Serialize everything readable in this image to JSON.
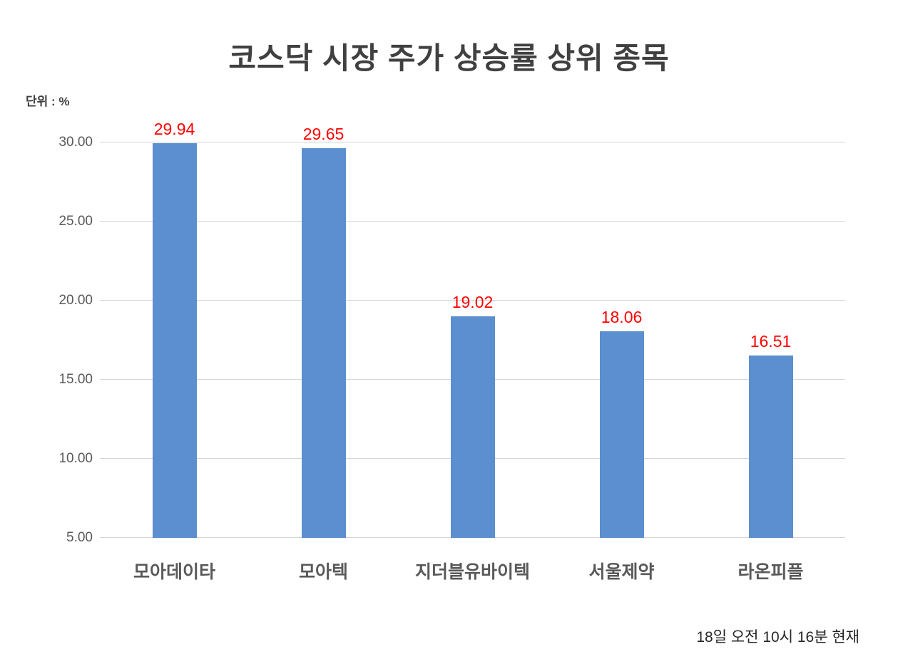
{
  "chart_data": {
    "type": "bar",
    "title": "코스닥 시장 주가 상승률 상위 종목",
    "unit_label": "단위 : %",
    "footnote": "18일 오전 10시 16분 현재",
    "categories": [
      "모아데이타",
      "모아텍",
      "지더블유바이텍",
      "서울제약",
      "라온피플"
    ],
    "values": [
      29.94,
      29.65,
      19.02,
      18.06,
      16.51
    ],
    "value_labels": [
      "29.94",
      "29.65",
      "19.02",
      "18.06",
      "16.51"
    ],
    "xlabel": "",
    "ylabel": "",
    "ylim": [
      5,
      30
    ],
    "yticks": [
      5,
      10,
      15,
      20,
      25,
      30
    ],
    "ytick_labels": [
      "5.00",
      "10.00",
      "15.00",
      "20.00",
      "25.00",
      "30.00"
    ],
    "grid": true,
    "legend": false,
    "colors": {
      "bar": "#5B8FD0",
      "value_label": "#FF0000",
      "gridline": "#D6D6D6",
      "title": "#404040",
      "axis_text": "#595959"
    }
  }
}
